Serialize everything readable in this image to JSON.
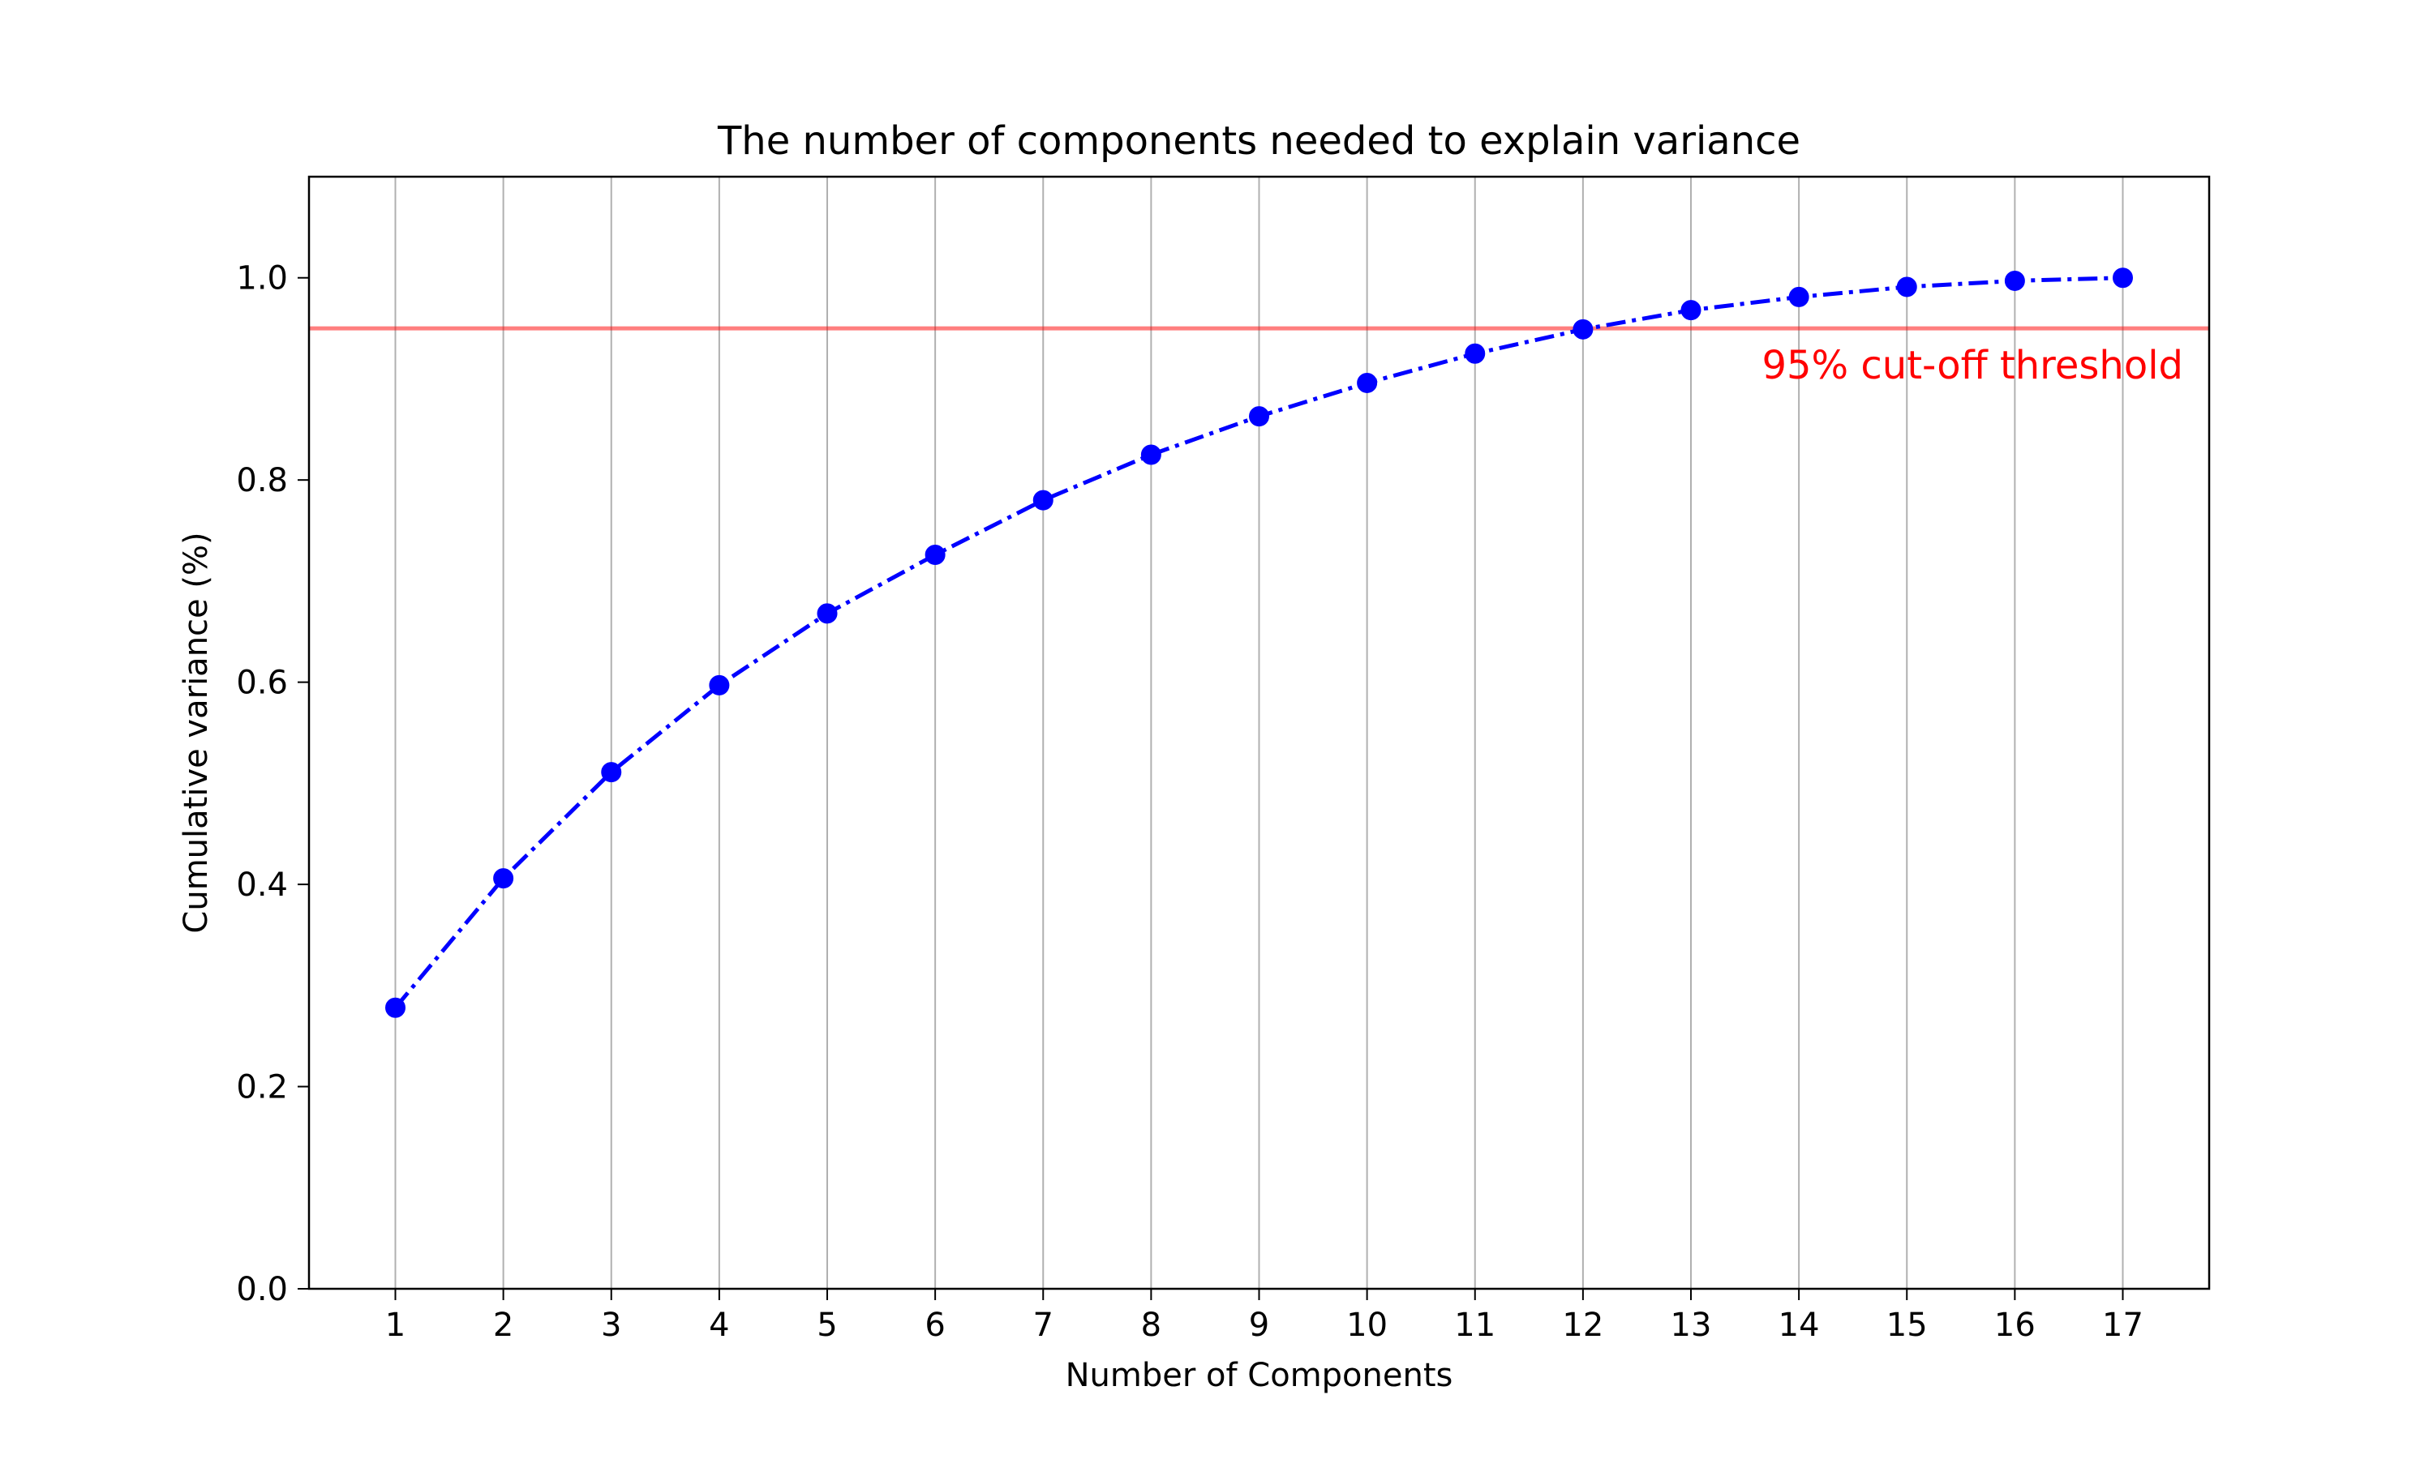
{
  "chart_data": {
    "type": "line",
    "title": "The number of components needed to explain variance",
    "xlabel": "Number of Components",
    "ylabel": "Cumulative variance (%)",
    "x": [
      1,
      2,
      3,
      4,
      5,
      6,
      7,
      8,
      9,
      10,
      11,
      12,
      13,
      14,
      15,
      16,
      17
    ],
    "xlim": [
      0.2,
      17.8
    ],
    "ylim": [
      0.0,
      1.1
    ],
    "yticks": [
      0.0,
      0.2,
      0.4,
      0.6,
      0.8,
      1.0
    ],
    "ytick_labels": [
      "0.0",
      "0.2",
      "0.4",
      "0.6",
      "0.8",
      "1.0"
    ],
    "xtick_labels": [
      "1",
      "2",
      "3",
      "4",
      "5",
      "6",
      "7",
      "8",
      "9",
      "10",
      "11",
      "12",
      "13",
      "14",
      "15",
      "16",
      "17"
    ],
    "grid": "vertical",
    "series": [
      {
        "values": [
          0.278,
          0.406,
          0.511,
          0.597,
          0.668,
          0.726,
          0.78,
          0.825,
          0.863,
          0.896,
          0.925,
          0.949,
          0.968,
          0.981,
          0.991,
          0.997,
          1.0
        ],
        "color": "#0000ff",
        "line_style": "dash-dot",
        "marker": "circle"
      }
    ],
    "threshold": {
      "y": 0.95,
      "label": "95% cut-off threshold",
      "color": "#ff0000"
    }
  }
}
